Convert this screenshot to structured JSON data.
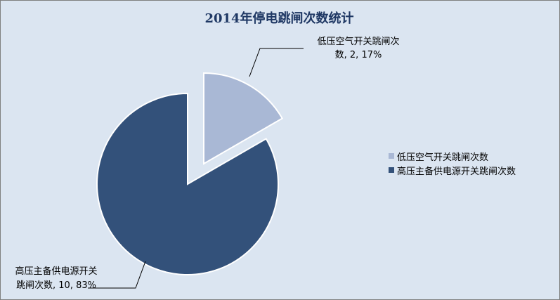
{
  "chart_data": {
    "type": "pie",
    "title": "2014年停电跳闸次数统计",
    "slices": [
      {
        "name": "低压空气开关跳闸次数",
        "value": 2,
        "percent": "17%",
        "color": "#a9b8d5",
        "label_lines": [
          "低压空气开关跳闸次",
          "数, 2, 17%"
        ]
      },
      {
        "name": "高压主备供电源开关跳闸次数",
        "value": 10,
        "percent": "83%",
        "color": "#33517a",
        "label_lines": [
          "高压主备供电源开关",
          "跳闸次数, 10, 83%"
        ]
      }
    ],
    "legend": {
      "position": "right"
    }
  }
}
